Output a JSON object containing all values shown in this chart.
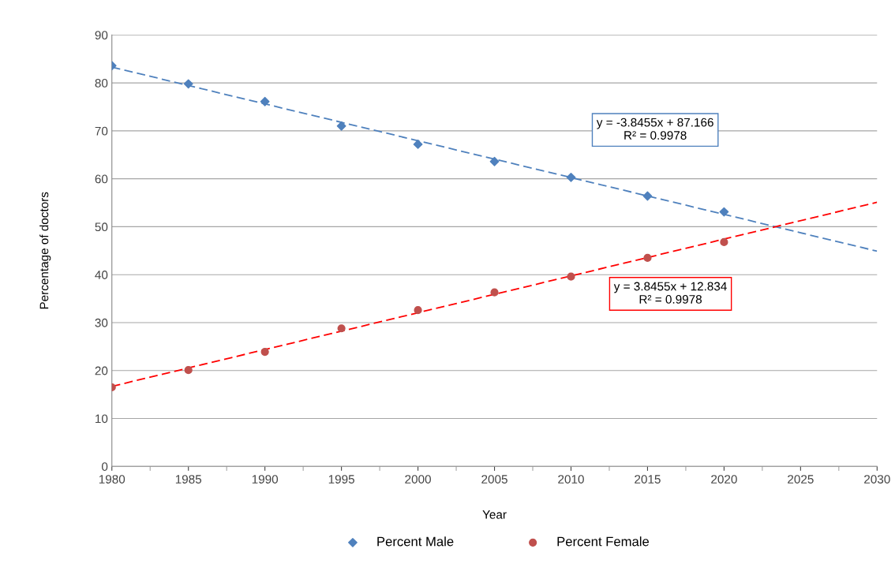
{
  "chart_data": {
    "type": "scatter",
    "xlabel": "Year",
    "ylabel": "Percentage of doctors",
    "xlim": [
      1980,
      2030
    ],
    "xticks": [
      1980,
      1985,
      1990,
      1995,
      2000,
      2005,
      2010,
      2015,
      2020,
      2025,
      2030
    ],
    "ylim": [
      0,
      90
    ],
    "yticks": [
      0,
      10,
      20,
      30,
      40,
      50,
      60,
      70,
      80,
      90
    ],
    "grid": "y",
    "legend": "bottom",
    "series": [
      {
        "name": "Percent Male",
        "marker": "diamond",
        "color": "#4f81bd",
        "x": [
          1980,
          1985,
          1990,
          1995,
          2000,
          2005,
          2010,
          2015,
          2020
        ],
        "values": [
          83.6,
          79.8,
          76.1,
          71.0,
          67.2,
          63.6,
          60.3,
          56.4,
          53.1
        ]
      },
      {
        "name": "Percent Female",
        "marker": "circle",
        "color": "#c0504d",
        "x": [
          1980,
          1985,
          1990,
          1995,
          2000,
          2005,
          2010,
          2015,
          2020
        ],
        "values": [
          16.5,
          20.1,
          23.9,
          28.8,
          32.6,
          36.3,
          39.6,
          43.5,
          46.8
        ]
      },
      {
        "type": "line",
        "line_style": "dashed",
        "color": "#4f81bd",
        "x": [
          1980,
          2030
        ],
        "values": [
          83.3,
          44.9
        ]
      },
      {
        "type": "line",
        "line_style": "dashed",
        "color": "#ff0000",
        "x": [
          1980,
          2030
        ],
        "values": [
          16.7,
          55.1
        ]
      }
    ],
    "annotations": [
      "y = -3.8455x + 87.166\nR² = 0.9978",
      "y = 3.8455x + 12.834\nR² = 0.9978"
    ]
  }
}
